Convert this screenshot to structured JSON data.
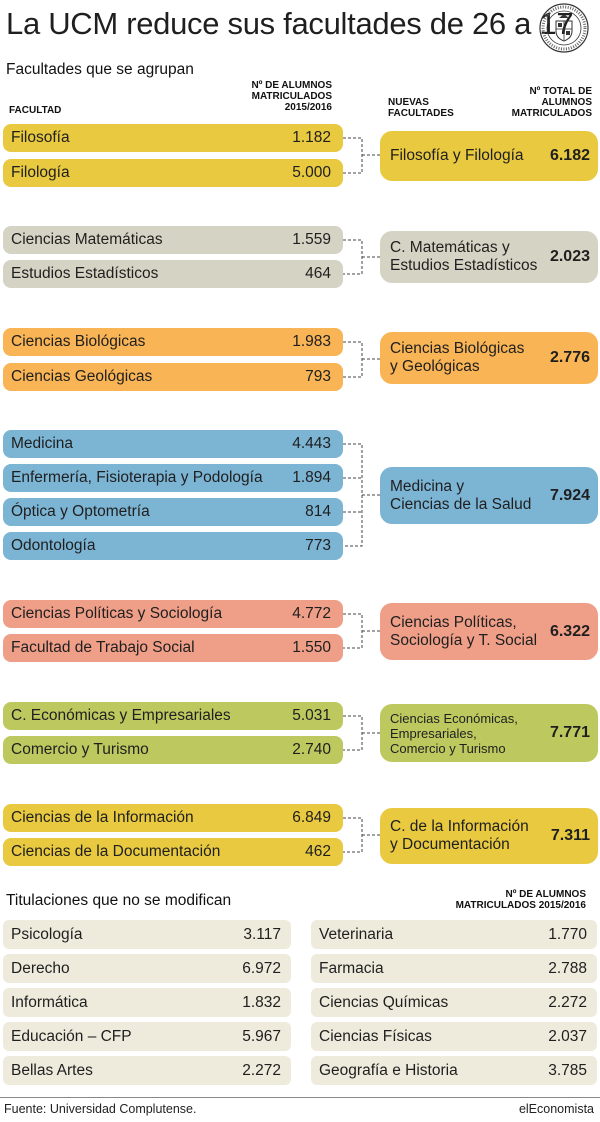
{
  "title": "La UCM reduce sus facultades de 26 a 17",
  "section1_title": "Facultades que se agrupan",
  "headers": {
    "facultad": "FACULTAD",
    "alumnos": [
      "Nº DE ALUMNOS",
      "MATRICULADOS",
      "2015/2016"
    ],
    "nuevas": [
      "NUEVAS",
      "FACULTADES"
    ],
    "total": [
      "Nº TOTAL DE",
      "ALUMNOS",
      "MATRICULADOS"
    ]
  },
  "groups": [
    {
      "color": "#e8c93f",
      "items": [
        {
          "name": "Filosofía",
          "value": "1.182"
        },
        {
          "name": "Filología",
          "value": "5.000"
        }
      ],
      "merged": {
        "name": "Filosofía y Filología",
        "value": "6.182"
      }
    },
    {
      "color": "#d5d3c4",
      "items": [
        {
          "name": "Ciencias Matemáticas",
          "value": "1.559"
        },
        {
          "name": "Estudios Estadísticos",
          "value": "464"
        }
      ],
      "merged": {
        "name": "C. Matemáticas y\nEstudios Estadísticos",
        "value": "2.023"
      }
    },
    {
      "color": "#f8b455",
      "items": [
        {
          "name": "Ciencias Biológicas",
          "value": "1.983"
        },
        {
          "name": "Ciencias Geológicas",
          "value": "793"
        }
      ],
      "merged": {
        "name": "Ciencias Biológicas\ny Geológicas",
        "value": "2.776"
      }
    },
    {
      "color": "#7cb4d4",
      "items": [
        {
          "name": "Medicina",
          "value": "4.443"
        },
        {
          "name": "Enfermería, Fisioterapia y Podología",
          "value": "1.894"
        },
        {
          "name": "Óptica y Optometría",
          "value": "814"
        },
        {
          "name": "Odontología",
          "value": "773"
        }
      ],
      "merged": {
        "name": "Medicina y\nCiencias de la Salud",
        "value": "7.924"
      }
    },
    {
      "color": "#ef9f88",
      "items": [
        {
          "name": "Ciencias Políticas y Sociología",
          "value": "4.772"
        },
        {
          "name": "Facultad de Trabajo Social",
          "value": "1.550"
        }
      ],
      "merged": {
        "name": "Ciencias Políticas,\nSociología y T. Social",
        "value": "6.322"
      }
    },
    {
      "color": "#bdc95f",
      "items": [
        {
          "name": "C. Económicas y Empresariales",
          "value": "5.031"
        },
        {
          "name": "Comercio y Turismo",
          "value": "2.740"
        }
      ],
      "merged": {
        "name": "Ciencias Económicas,\nEmpresariales,\nComercio y Turismo",
        "value": "7.771"
      }
    },
    {
      "color": "#e8c93f",
      "items": [
        {
          "name": "Ciencias de la Información",
          "value": "6.849"
        },
        {
          "name": "Ciencias de la Documentación",
          "value": "462"
        }
      ],
      "merged": {
        "name": "C. de la Información\ny Documentación",
        "value": "7.311"
      }
    }
  ],
  "section2_title": "Titulaciones que no se modifican",
  "section2_header": [
    "Nº DE ALUMNOS",
    "MATRICULADOS 2015/2016"
  ],
  "unchanged_left": [
    {
      "name": "Psicología",
      "value": "3.117"
    },
    {
      "name": "Derecho",
      "value": "6.972"
    },
    {
      "name": "Informática",
      "value": "1.832"
    },
    {
      "name": "Educación – CFP",
      "value": "5.967"
    },
    {
      "name": "Bellas Artes",
      "value": "2.272"
    }
  ],
  "unchanged_right": [
    {
      "name": "Veterinaria",
      "value": "1.770"
    },
    {
      "name": "Farmacia",
      "value": "2.788"
    },
    {
      "name": "Ciencias Químicas",
      "value": "2.272"
    },
    {
      "name": "Ciencias Físicas",
      "value": "2.037"
    },
    {
      "name": "Geografía e Historia",
      "value": "3.785"
    }
  ],
  "source": "Fuente: Universidad Complutense.",
  "brand": "elEconomista"
}
